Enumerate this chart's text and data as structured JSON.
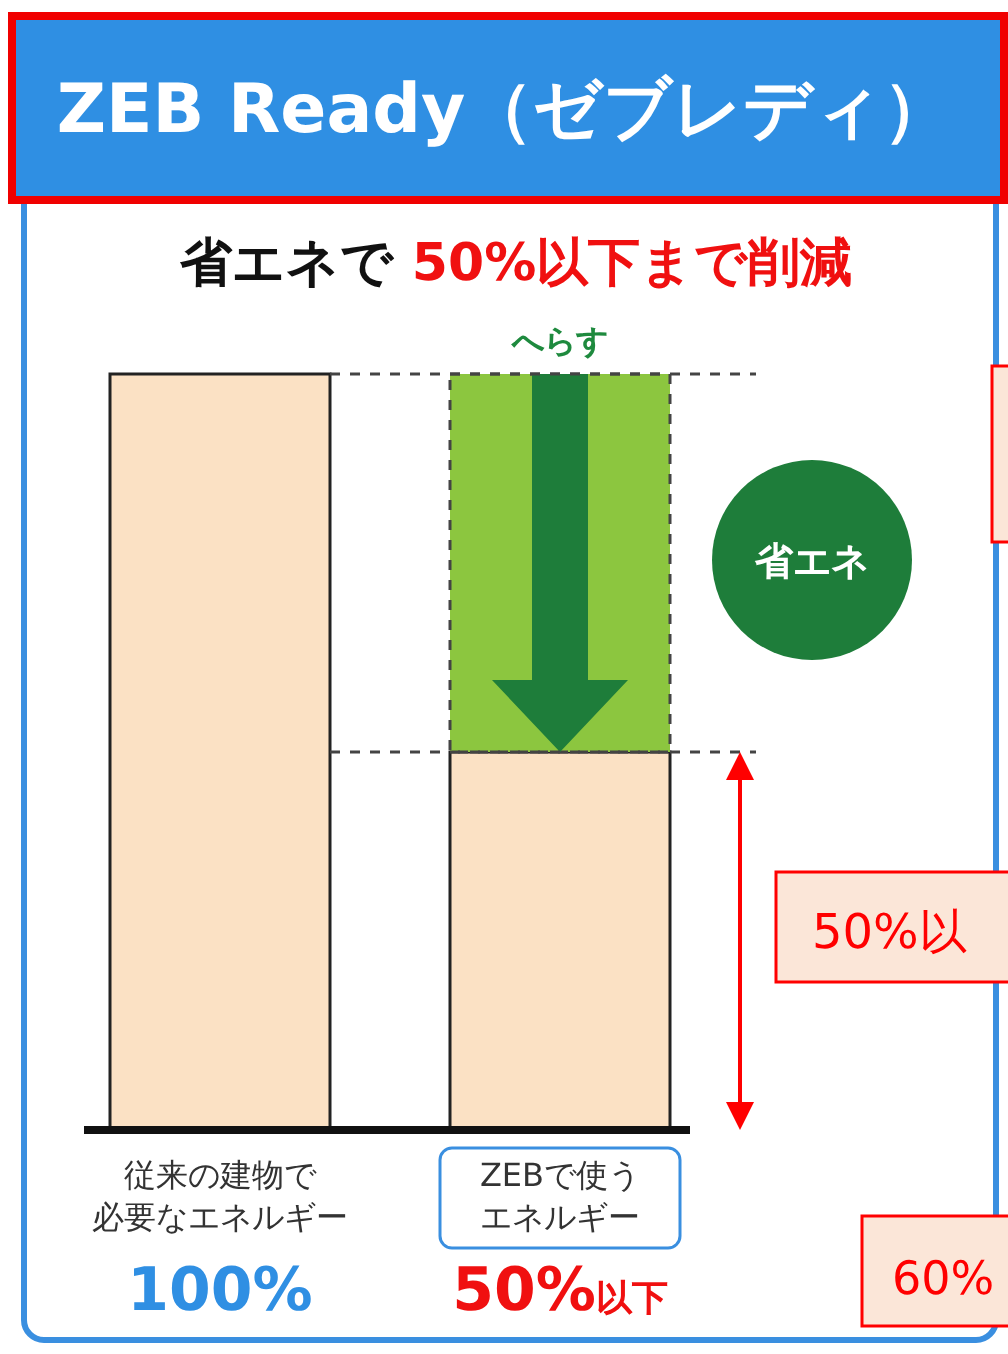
{
  "chart_data": {
    "type": "bar",
    "stacked": true,
    "title": "ZEB Ready（ゼブレディ）",
    "subtitle": "省エネで 50%以下まで削減",
    "categories": [
      "従来の建物で必要なエネルギー",
      "ZEBで使うエネルギー"
    ],
    "series": [
      {
        "color": "#fbe1c4",
        "values": [
          100,
          50
        ],
        "value_labels": [
          "100%",
          "50%以下"
        ]
      },
      {
        "color": "#8cc63f",
        "values": [
          null,
          50
        ]
      }
    ],
    "ref_lines": [
      {
        "axis": "y",
        "value": 100,
        "line_style": "dashed"
      },
      {
        "axis": "y",
        "value": 50,
        "line_style": "dashed"
      }
    ],
    "annotations": [
      "へらす",
      "省エネ",
      "50%以",
      "60%"
    ]
  }
}
